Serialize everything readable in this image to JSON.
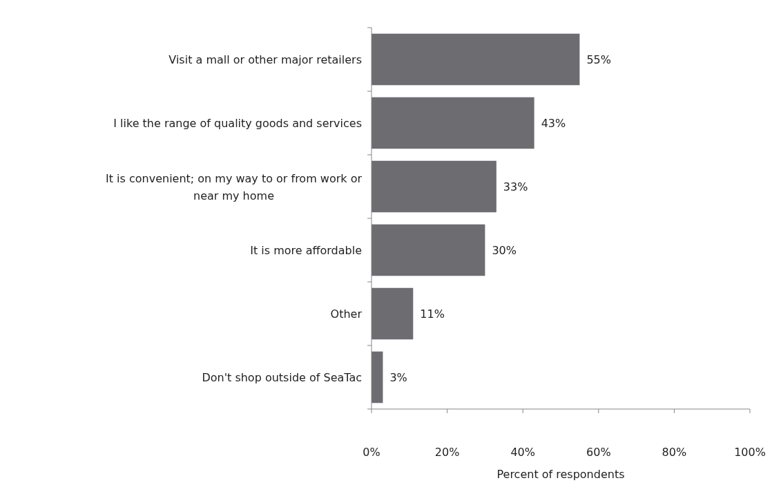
{
  "chart_data": {
    "type": "bar",
    "orientation": "horizontal",
    "xlabel": "Percent of respondents",
    "categories": [
      "Visit a mall or other major retailers",
      "I like the range of quality goods and services",
      "It is convenient; on my way to or from work or near my home",
      "It is more affordable",
      "Other",
      "Don't shop outside of SeaTac"
    ],
    "values": [
      55,
      43,
      33,
      30,
      11,
      3
    ],
    "value_labels": [
      "55%",
      "43%",
      "33%",
      "30%",
      "11%",
      "3%"
    ],
    "color": "#6d6c71",
    "xlim": [
      0,
      100
    ],
    "xticks": [
      {
        "value": 0,
        "label": "0%"
      },
      {
        "value": 20,
        "label": "20%"
      },
      {
        "value": 40,
        "label": "40%"
      },
      {
        "value": 60,
        "label": "60%"
      },
      {
        "value": 80,
        "label": "80%"
      },
      {
        "value": 100,
        "label": "100%"
      }
    ],
    "grid": false
  }
}
